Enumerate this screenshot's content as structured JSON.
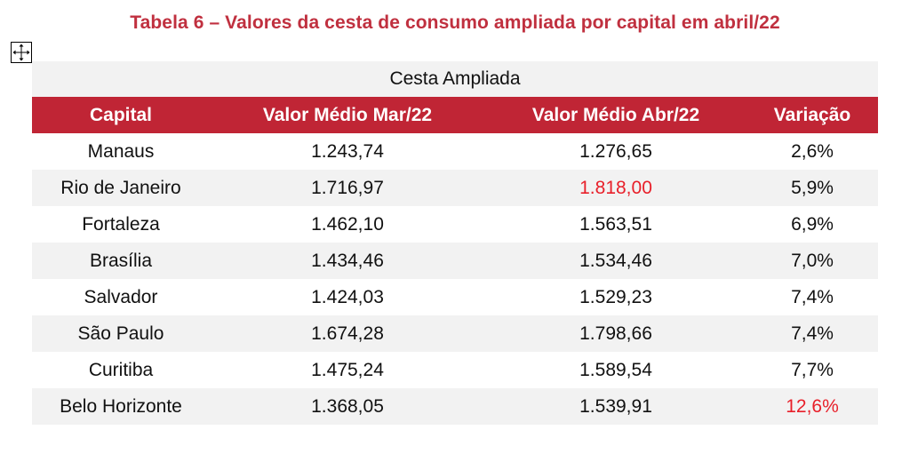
{
  "title": "Tabela 6 – Valores da cesta de consumo ampliada por capital em abril/22",
  "table": {
    "group_header": "Cesta Ampliada",
    "columns": [
      "Capital",
      "Valor Médio Mar/22",
      "Valor Médio Abr/22",
      "Variação"
    ],
    "rows": [
      {
        "capital": "Manaus",
        "mar": "1.243,74",
        "abr": "1.276,65",
        "variacao": "2,6%"
      },
      {
        "capital": "Rio de Janeiro",
        "mar": "1.716,97",
        "abr": "1.818,00",
        "variacao": "5,9%"
      },
      {
        "capital": "Fortaleza",
        "mar": "1.462,10",
        "abr": "1.563,51",
        "variacao": "6,9%"
      },
      {
        "capital": "Brasília",
        "mar": "1.434,46",
        "abr": "1.534,46",
        "variacao": "7,0%"
      },
      {
        "capital": "Salvador",
        "mar": "1.424,03",
        "abr": "1.529,23",
        "variacao": "7,4%"
      },
      {
        "capital": "São Paulo",
        "mar": "1.674,28",
        "abr": "1.798,66",
        "variacao": "7,4%"
      },
      {
        "capital": "Curitiba",
        "mar": "1.475,24",
        "abr": "1.589,54",
        "variacao": "7,7%"
      },
      {
        "capital": "Belo Horizonte",
        "mar": "1.368,05",
        "abr": "1.539,91",
        "variacao": "12,6%"
      }
    ]
  },
  "colors": {
    "title": "#c0303f",
    "header_bg": "#c02535",
    "header_text": "#ffffff",
    "shaded_row": "#f2f2f2",
    "highlight": "#e8202a"
  },
  "icons": {
    "move_handle": "move-arrows-icon"
  }
}
